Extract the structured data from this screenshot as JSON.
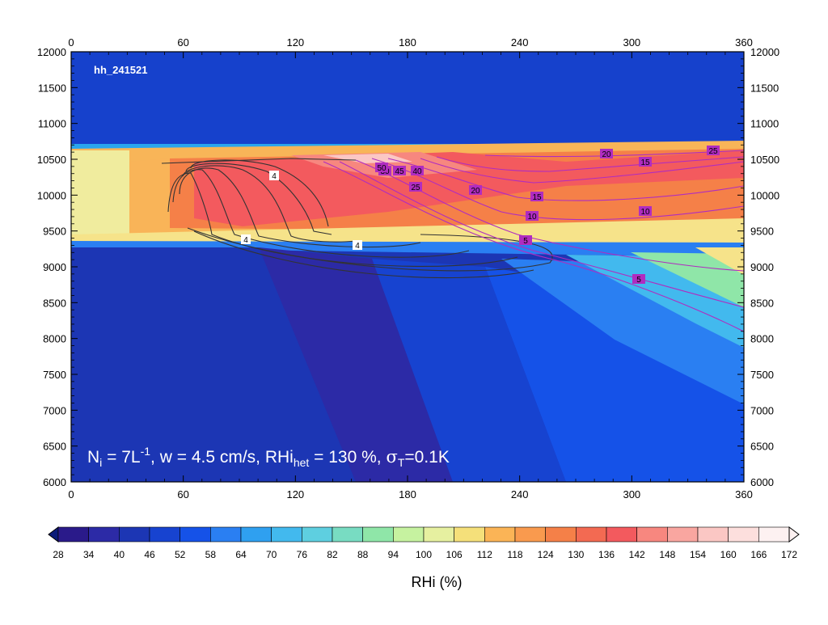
{
  "chart_data": {
    "type": "heatmap",
    "tag": "hh_241521",
    "annotation": {
      "base": "N",
      "sub1": "i",
      "mid1": " = 7L",
      "sup1": "-1",
      "mid2": ", w = 4.5 cm/s, RHi",
      "sub2": "het",
      "mid3": " = 130 %, ",
      "sigma": "σ",
      "sub3": "T",
      "tail": "=0.1K"
    },
    "xlim": [
      0,
      360
    ],
    "ylim": [
      6000,
      12000
    ],
    "x_ticks": [
      0,
      60,
      120,
      180,
      240,
      300,
      360
    ],
    "y_ticks": [
      6000,
      6500,
      7000,
      7500,
      8000,
      8500,
      9000,
      9500,
      10000,
      10500,
      11000,
      11500,
      12000
    ],
    "colorbar": {
      "label": "RHi (%)",
      "levels": [
        28,
        34,
        40,
        46,
        52,
        58,
        64,
        70,
        76,
        82,
        88,
        94,
        100,
        106,
        112,
        118,
        124,
        130,
        136,
        142,
        148,
        154,
        160,
        166,
        172
      ],
      "colors": [
        "#0b1c7a",
        "#2a1a8a",
        "#2c2aa6",
        "#1c36b4",
        "#1743d0",
        "#1552e8",
        "#2a7ff2",
        "#2fa0f0",
        "#42b9ee",
        "#5ecfe0",
        "#78dcc2",
        "#8fe6a8",
        "#c6f2a0",
        "#e6f0a0",
        "#f5e07a",
        "#fbb456",
        "#f99a4e",
        "#f58048",
        "#f36a52",
        "#f35a5e",
        "#f7877f",
        "#f9a6a0",
        "#fbc7c4",
        "#fddfdd",
        "#fdf1f1"
      ]
    },
    "contour_labels_black": [
      "4",
      "4",
      "4"
    ],
    "contour_labels_magenta": [
      "5",
      "10",
      "15",
      "20",
      "25",
      "30",
      "40",
      "45",
      "50",
      "5",
      "10",
      "15",
      "20",
      "25"
    ],
    "grid": false
  }
}
